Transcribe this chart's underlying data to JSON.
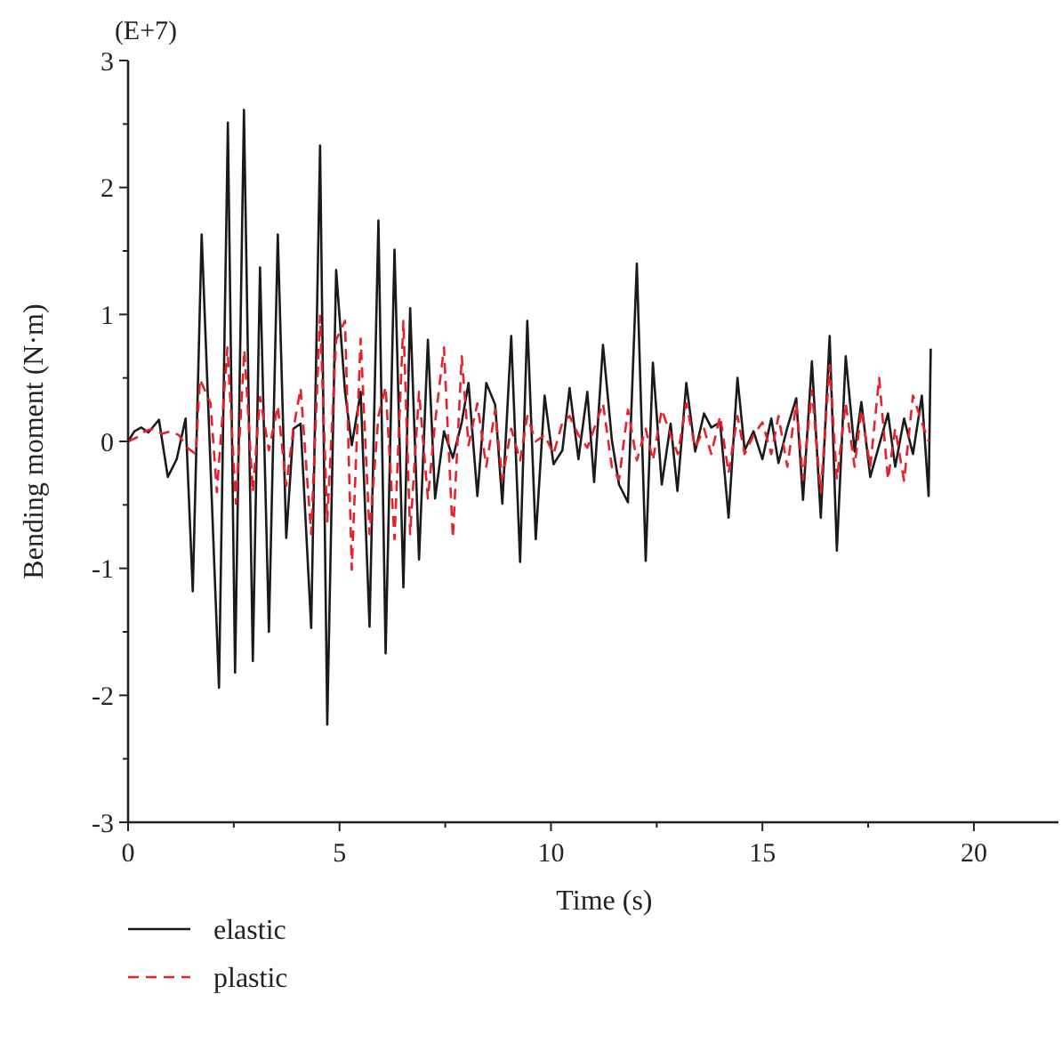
{
  "chart_data": {
    "type": "line",
    "xlabel": "Time (s)",
    "ylabel": "Bending moment (N·m)",
    "annotations": [
      "(E+7)"
    ],
    "xlim": [
      0,
      22
    ],
    "ylim": [
      -3,
      3
    ],
    "xticks": [
      0,
      {
        "value": 2.5,
        "label": null
      },
      5,
      {
        "value": 7.5,
        "label": null
      },
      10,
      {
        "value": 12.5,
        "label": null
      },
      15,
      {
        "value": 17.5,
        "label": null
      },
      20
    ],
    "yticks": [
      -3,
      {
        "value": -2.5,
        "label": null
      },
      -2,
      {
        "value": -1.5,
        "label": null
      },
      -1,
      {
        "value": -0.5,
        "label": null
      },
      0,
      {
        "value": 0.5,
        "label": null
      },
      1,
      {
        "value": 1.5,
        "label": null
      },
      2,
      {
        "value": 2.5,
        "label": null
      },
      3
    ],
    "grid": false,
    "legend": "bottom",
    "series": [
      {
        "name": "elastic",
        "color": "#1a1a1a",
        "line_style": "solid",
        "x": [
          0,
          0.15,
          0.31,
          0.48,
          0.73,
          0.94,
          1.15,
          1.36,
          1.53,
          1.74,
          2.15,
          2.36,
          2.53,
          2.74,
          2.95,
          3.12,
          3.33,
          3.54,
          3.74,
          3.91,
          4.08,
          4.33,
          4.54,
          4.71,
          4.92,
          5.13,
          5.29,
          5.5,
          5.71,
          5.92,
          6.09,
          6.3,
          6.51,
          6.67,
          6.88,
          7.09,
          7.26,
          7.47,
          7.68,
          7.89,
          8.05,
          8.26,
          8.47,
          8.68,
          8.85,
          9.06,
          9.27,
          9.44,
          9.64,
          9.85,
          10.06,
          10.27,
          10.44,
          10.65,
          10.86,
          11.02,
          11.23,
          11.44,
          11.61,
          11.82,
          12.03,
          12.24,
          12.41,
          12.62,
          12.83,
          12.99,
          13.2,
          13.41,
          13.62,
          13.79,
          14,
          14.2,
          14.41,
          14.58,
          14.79,
          15,
          15.21,
          15.38,
          15.59,
          15.8,
          15.96,
          16.17,
          16.38,
          16.59,
          16.76,
          16.97,
          17.18,
          17.34,
          17.55,
          17.76,
          17.97,
          18.14,
          18.35,
          18.56,
          18.77,
          18.93,
          18.98
        ],
        "values": [
          0,
          0.08,
          0.11,
          0.07,
          0.17,
          -0.28,
          -0.14,
          0.18,
          -1.18,
          1.63,
          -1.94,
          2.51,
          -1.82,
          2.61,
          -1.73,
          1.37,
          -1.5,
          1.63,
          -0.76,
          0.1,
          0.14,
          -1.47,
          2.33,
          -2.23,
          1.35,
          0.39,
          -0.03,
          0.39,
          -1.46,
          1.74,
          -1.67,
          1.51,
          -1.15,
          1.05,
          -0.93,
          0.8,
          -0.45,
          0.08,
          -0.13,
          0.15,
          0.46,
          -0.43,
          0.46,
          0.29,
          -0.49,
          0.83,
          -0.95,
          0.95,
          -0.77,
          0.36,
          -0.18,
          -0.07,
          0.42,
          -0.14,
          0.39,
          -0.32,
          0.76,
          0.01,
          -0.34,
          -0.48,
          1.4,
          -0.94,
          0.62,
          -0.34,
          0.14,
          -0.39,
          0.46,
          -0.08,
          0.22,
          0.11,
          0.15,
          -0.6,
          0.5,
          -0.07,
          0.08,
          -0.14,
          0.18,
          -0.17,
          0.11,
          0.34,
          -0.46,
          0.63,
          -0.6,
          0.83,
          -0.86,
          0.67,
          -0.08,
          0.31,
          -0.28,
          -0.03,
          0.22,
          -0.2,
          0.18,
          -0.1,
          0.36,
          -0.43,
          0.73
        ]
      },
      {
        "name": "plastic",
        "color": "#e8202a",
        "line_style": "dashed",
        "x": [
          0,
          0.2,
          0.4,
          0.6,
          0.8,
          1,
          1.2,
          1.4,
          1.6,
          1.7,
          1.95,
          2.1,
          2.35,
          2.55,
          2.75,
          2.95,
          3.12,
          3.33,
          3.54,
          3.74,
          3.91,
          4.08,
          4.33,
          4.54,
          4.71,
          4.92,
          5.13,
          5.29,
          5.5,
          5.71,
          5.92,
          6.09,
          6.3,
          6.51,
          6.67,
          6.88,
          7.09,
          7.26,
          7.47,
          7.68,
          7.89,
          8.05,
          8.26,
          8.47,
          8.68,
          8.85,
          9.06,
          9.27,
          9.44,
          9.64,
          9.85,
          10.06,
          10.27,
          10.44,
          10.65,
          10.86,
          11.02,
          11.23,
          11.44,
          11.61,
          11.82,
          12.03,
          12.24,
          12.41,
          12.62,
          12.83,
          13,
          13.2,
          13.41,
          13.62,
          13.79,
          14,
          14.2,
          14.41,
          14.58,
          14.79,
          15,
          15.21,
          15.38,
          15.59,
          15.8,
          15.96,
          16.17,
          16.38,
          16.59,
          16.76,
          16.97,
          17.18,
          17.34,
          17.55,
          17.76,
          17.97,
          18.14,
          18.35,
          18.56,
          18.77,
          18.93
        ],
        "values": [
          0,
          0.03,
          0.08,
          0.1,
          0.06,
          0.08,
          0.05,
          -0.05,
          -0.1,
          0.49,
          0.3,
          -0.4,
          0.74,
          -0.49,
          0.72,
          -0.4,
          0.35,
          -0.07,
          0.28,
          -0.35,
          0.1,
          0.42,
          -0.73,
          0.99,
          -0.63,
          0.8,
          0.95,
          -1.01,
          0.81,
          -0.73,
          0.2,
          0.43,
          -0.77,
          0.95,
          -0.73,
          0.39,
          -0.45,
          0.15,
          0.74,
          -0.76,
          0.67,
          -0.03,
          0.3,
          -0.2,
          0.25,
          -0.3,
          0.1,
          -0.15,
          0.2,
          0,
          0.05,
          -0.1,
          0.15,
          0.2,
          0.05,
          -0.05,
          0.1,
          0.3,
          -0.2,
          -0.3,
          0.25,
          -0.15,
          0.1,
          -0.15,
          0.25,
          0.05,
          -0.1,
          0.3,
          -0.05,
          0.1,
          -0.1,
          0.2,
          -0.25,
          0.2,
          -0.1,
          0.05,
          0.15,
          -0.1,
          0.2,
          -0.2,
          0.3,
          -0.3,
          0.4,
          -0.4,
          0.6,
          -0.3,
          0.3,
          -0.2,
          0.25,
          -0.2,
          0.5,
          -0.3,
          0.1,
          -0.31,
          0.36,
          0.15,
          0
        ]
      }
    ]
  }
}
